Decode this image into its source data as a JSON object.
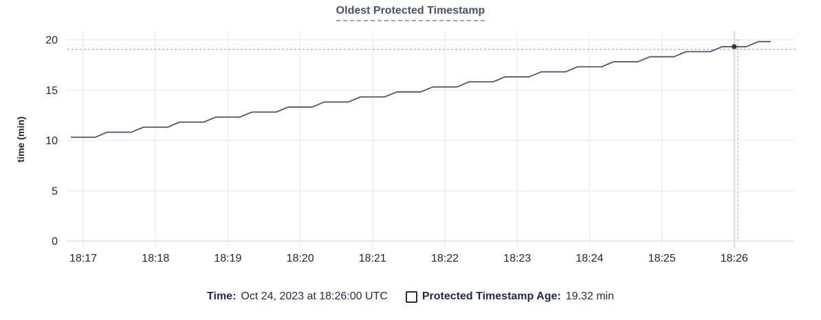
{
  "title": "Oldest Protected Timestamp",
  "footer": {
    "time_label": "Time:",
    "time_value": "Oct 24, 2023 at 18:26:00 UTC",
    "series_label": "Protected Timestamp Age:",
    "series_value": "19.32 min"
  },
  "colors": {
    "line": "#3e4f6e",
    "dot": "#27344e",
    "title": "#44536e",
    "navy": "#1c2b4a",
    "grid": "#f1f1f1",
    "grid_axis": "#e7e7e7",
    "grid_hover": "#e2e2e2",
    "crosshair": "#a4b4c6",
    "axis_text": "#23272b"
  },
  "chart_data": {
    "type": "line",
    "title": "Oldest Protected Timestamp",
    "xlabel": "",
    "ylabel": "time (min)",
    "ylim": [
      0,
      20
    ],
    "y_ticks": [
      20,
      15,
      10,
      5,
      0
    ],
    "x_tick_labels": [
      "18:17",
      "18:18",
      "18:19",
      "18:20",
      "18:21",
      "18:22",
      "18:23",
      "18:24",
      "18:25",
      "18:26"
    ],
    "grid": true,
    "legend_position": "bottom",
    "hover_tick": "18:26",
    "highlight": {
      "x_time": "18:26:00",
      "value": 19.32
    },
    "crosshair": {
      "x_time": "18:26:03",
      "y_value": 19.05
    },
    "series": [
      {
        "name": "Protected Timestamp Age",
        "unit": "min",
        "points": [
          [
            "18:16:50",
            10.32
          ],
          [
            "18:17:00",
            10.32
          ],
          [
            "18:17:10",
            10.32
          ],
          [
            "18:17:20",
            10.82
          ],
          [
            "18:17:30",
            10.82
          ],
          [
            "18:17:40",
            10.82
          ],
          [
            "18:17:50",
            11.32
          ],
          [
            "18:18:00",
            11.32
          ],
          [
            "18:18:10",
            11.32
          ],
          [
            "18:18:20",
            11.82
          ],
          [
            "18:18:30",
            11.82
          ],
          [
            "18:18:40",
            11.82
          ],
          [
            "18:18:50",
            12.32
          ],
          [
            "18:19:00",
            12.32
          ],
          [
            "18:19:10",
            12.32
          ],
          [
            "18:19:20",
            12.82
          ],
          [
            "18:19:30",
            12.82
          ],
          [
            "18:19:40",
            12.82
          ],
          [
            "18:19:50",
            13.32
          ],
          [
            "18:20:00",
            13.32
          ],
          [
            "18:20:10",
            13.32
          ],
          [
            "18:20:20",
            13.82
          ],
          [
            "18:20:30",
            13.82
          ],
          [
            "18:20:40",
            13.82
          ],
          [
            "18:20:50",
            14.32
          ],
          [
            "18:21:00",
            14.32
          ],
          [
            "18:21:10",
            14.32
          ],
          [
            "18:21:20",
            14.82
          ],
          [
            "18:21:30",
            14.82
          ],
          [
            "18:21:40",
            14.82
          ],
          [
            "18:21:50",
            15.32
          ],
          [
            "18:22:00",
            15.32
          ],
          [
            "18:22:10",
            15.32
          ],
          [
            "18:22:20",
            15.82
          ],
          [
            "18:22:30",
            15.82
          ],
          [
            "18:22:40",
            15.82
          ],
          [
            "18:22:50",
            16.32
          ],
          [
            "18:23:00",
            16.32
          ],
          [
            "18:23:10",
            16.32
          ],
          [
            "18:23:20",
            16.82
          ],
          [
            "18:23:30",
            16.82
          ],
          [
            "18:23:40",
            16.82
          ],
          [
            "18:23:50",
            17.32
          ],
          [
            "18:24:00",
            17.32
          ],
          [
            "18:24:10",
            17.32
          ],
          [
            "18:24:20",
            17.82
          ],
          [
            "18:24:30",
            17.82
          ],
          [
            "18:24:40",
            17.82
          ],
          [
            "18:24:50",
            18.32
          ],
          [
            "18:25:00",
            18.32
          ],
          [
            "18:25:10",
            18.32
          ],
          [
            "18:25:20",
            18.82
          ],
          [
            "18:25:30",
            18.82
          ],
          [
            "18:25:40",
            18.82
          ],
          [
            "18:25:50",
            19.32
          ],
          [
            "18:26:00",
            19.32
          ],
          [
            "18:26:10",
            19.32
          ],
          [
            "18:26:20",
            19.82
          ],
          [
            "18:26:30",
            19.82
          ]
        ]
      }
    ]
  }
}
